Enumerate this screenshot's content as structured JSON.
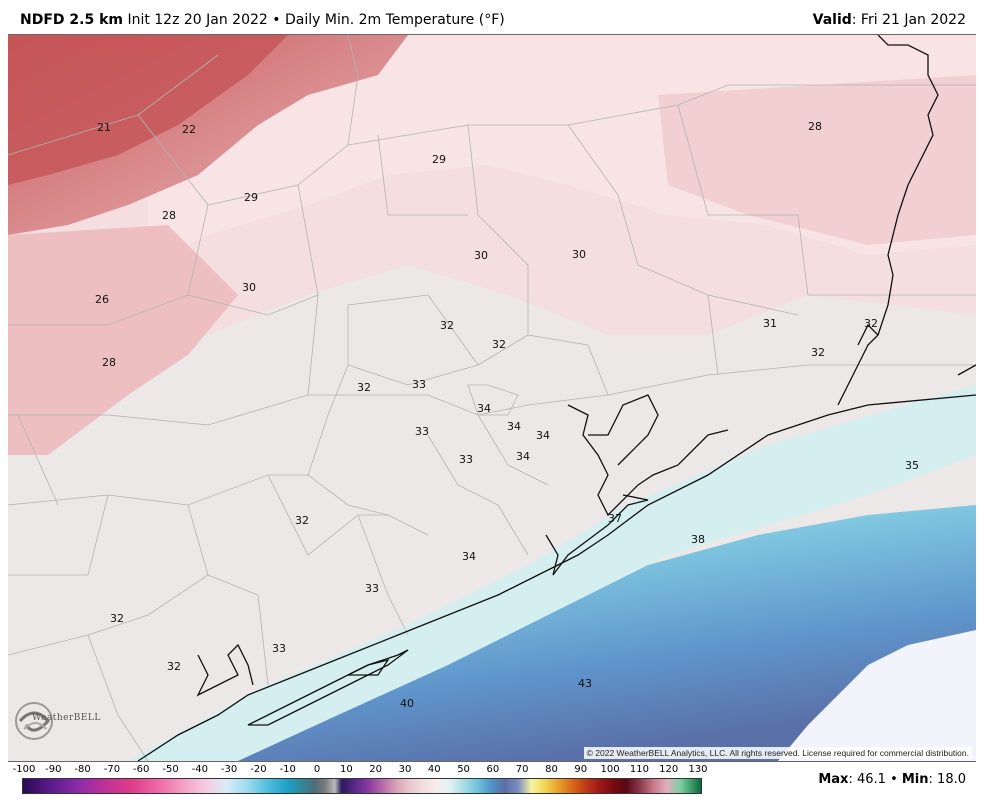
{
  "header": {
    "model": "NDFD 2.5 km",
    "init": "Init 12z 20 Jan 2022",
    "separator": "•",
    "product": "Daily Min. 2m Temperature (°F)",
    "valid_label": "Valid",
    "valid_value": ": Fri 21 Jan 2022"
  },
  "copyright": "© 2022 WeatherBELL Analytics, LLC. All rights reserved. License required for commercial distribution.",
  "logo": {
    "text": "WeatherBELL",
    "icon": "swirl-logo-icon"
  },
  "colorbar": {
    "ticks": [
      "-100",
      "-90",
      "-80",
      "-70",
      "-60",
      "-50",
      "-40",
      "-30",
      "-20",
      "-10",
      "0",
      "10",
      "20",
      "30",
      "40",
      "50",
      "60",
      "70",
      "80",
      "90",
      "100",
      "110",
      "120",
      "130"
    ]
  },
  "stats": {
    "max_label": "Max",
    "max_value": ": 46.1",
    "separator": "•",
    "min_label": "Min",
    "min_value": ": 18.0"
  },
  "map_labels": [
    "21",
    "22",
    "29",
    "29",
    "28",
    "28",
    "30",
    "30",
    "30",
    "26",
    "28",
    "32",
    "32",
    "31",
    "32",
    "32",
    "32",
    "33",
    "34",
    "34",
    "34",
    "33",
    "33",
    "34",
    "35",
    "37",
    "38",
    "32",
    "34",
    "33",
    "32",
    "33",
    "32",
    "43",
    "40"
  ]
}
